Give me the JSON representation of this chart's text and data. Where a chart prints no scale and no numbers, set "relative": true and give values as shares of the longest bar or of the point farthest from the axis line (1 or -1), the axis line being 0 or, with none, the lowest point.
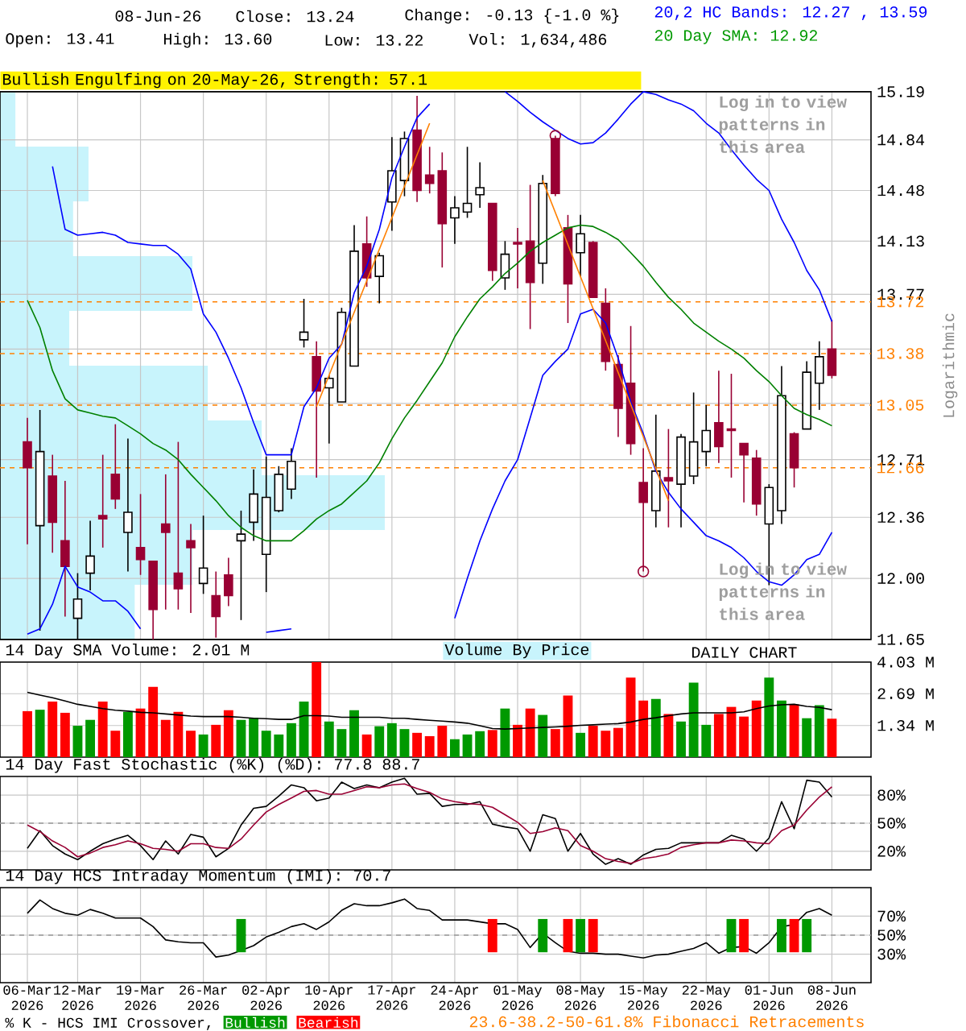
{
  "chart_data": [
    {
      "type": "candlestick",
      "ylabel": "Logarithmic",
      "log": "y",
      "grid": true,
      "tick_labels": "y",
      "categories": [
        null,
        null,
        null,
        null,
        null,
        null,
        null,
        null,
        null,
        null,
        null,
        null,
        null,
        null,
        null,
        null,
        null,
        null,
        null,
        null,
        null,
        null,
        null,
        null,
        null,
        null,
        null,
        null,
        null,
        null,
        null,
        null,
        null,
        null,
        null,
        null,
        null,
        null,
        null,
        null,
        null,
        null,
        null,
        null,
        null,
        null,
        null,
        null,
        null,
        null,
        null,
        null,
        null,
        null,
        null,
        null,
        null,
        null,
        null,
        null,
        null,
        null,
        null,
        null,
        null
      ],
      "ylim": [
        11.65,
        15.19
      ],
      "yticks": [
        11.65,
        {
          "value": 12,
          "label": "12.00"
        },
        12.36,
        12.71,
        {
          "value": 13.06,
          "label": null
        },
        {
          "value": 13.41,
          "label": null
        },
        13.77,
        14.13,
        14.48,
        14.84,
        15.19
      ],
      "ohlc": [
        [
          12.82,
          12.97,
          12.2,
          12.66
        ],
        [
          12.31,
          13.02,
          11.7,
          12.76
        ],
        [
          12.61,
          12.74,
          12.15,
          12.33
        ],
        [
          12.22,
          12.58,
          11.78,
          12.07
        ],
        [
          11.77,
          12.03,
          11.65,
          11.88
        ],
        [
          12.03,
          12.34,
          11.93,
          12.13
        ],
        [
          12.37,
          12.74,
          12.18,
          12.35
        ],
        [
          12.62,
          12.93,
          12.41,
          12.47
        ],
        [
          12.27,
          12.84,
          12.04,
          12.39
        ],
        [
          12.18,
          12.5,
          12.02,
          12.11
        ],
        [
          12.1,
          12.1,
          11.65,
          11.82
        ],
        [
          12.32,
          12.62,
          11.82,
          12.27
        ],
        [
          12.03,
          12.82,
          11.82,
          11.94
        ],
        [
          12.22,
          12.32,
          11.8,
          12.18
        ],
        [
          11.97,
          12.37,
          11.91,
          12.06
        ],
        [
          11.9,
          12.04,
          11.66,
          11.78
        ],
        [
          12.02,
          12.12,
          11.84,
          11.9
        ],
        [
          12.22,
          12.4,
          11.76,
          12.26
        ],
        [
          12.33,
          12.65,
          12.22,
          12.5
        ],
        [
          12.14,
          12.73,
          11.92,
          12.48
        ],
        [
          12.4,
          12.67,
          12.39,
          12.62
        ],
        [
          12.53,
          12.78,
          12.47,
          12.7
        ],
        [
          13.47,
          13.74,
          13.42,
          13.52
        ],
        [
          13.36,
          13.46,
          12.6,
          13.14
        ],
        [
          13.16,
          13.24,
          12.81,
          13.22
        ],
        [
          13.07,
          13.68,
          13.07,
          13.65
        ],
        [
          13.3,
          14.24,
          13.3,
          14.06
        ],
        [
          14.11,
          14.3,
          13.82,
          13.88
        ],
        [
          13.89,
          14.05,
          13.71,
          14.03
        ],
        [
          14.4,
          14.86,
          14.2,
          14.62
        ],
        [
          14.55,
          14.9,
          14.44,
          14.85
        ],
        [
          14.91,
          15.16,
          14.4,
          14.48
        ],
        [
          14.59,
          14.79,
          14.46,
          14.53
        ],
        [
          14.62,
          14.75,
          13.95,
          14.25
        ],
        [
          14.29,
          14.44,
          14.11,
          14.36
        ],
        [
          14.33,
          14.79,
          14.29,
          14.39
        ],
        [
          14.45,
          14.68,
          14.36,
          14.5
        ],
        [
          14.39,
          14.39,
          13.86,
          13.93
        ],
        [
          13.88,
          14.13,
          13.8,
          14.04
        ],
        [
          14.12,
          14.22,
          13.81,
          14.11
        ],
        [
          14.13,
          14.52,
          13.54,
          13.85
        ],
        [
          13.98,
          14.59,
          13.84,
          14.53
        ],
        [
          14.85,
          14.87,
          14.44,
          14.46
        ],
        [
          14.22,
          14.31,
          13.58,
          13.84
        ],
        [
          14.05,
          14.31,
          13.89,
          14.18
        ],
        [
          14.12,
          14.13,
          13.75,
          13.75
        ],
        [
          13.71,
          13.81,
          13.27,
          13.33
        ],
        [
          13.31,
          13.37,
          12.85,
          13.03
        ],
        [
          13.19,
          13.56,
          12.74,
          12.81
        ],
        [
          12.57,
          12.78,
          12.04,
          12.45
        ],
        [
          12.4,
          12.99,
          12.3,
          12.64
        ],
        [
          12.6,
          12.9,
          12.3,
          12.58
        ],
        [
          12.56,
          12.87,
          12.3,
          12.85
        ],
        [
          12.61,
          13.13,
          12.56,
          12.82
        ],
        [
          12.76,
          13.05,
          12.67,
          12.89
        ],
        [
          12.94,
          13.27,
          12.69,
          12.79
        ],
        [
          12.9,
          13.25,
          12.6,
          12.89
        ],
        [
          12.81,
          12.81,
          12.45,
          12.74
        ],
        [
          12.72,
          12.77,
          12.37,
          12.44
        ],
        [
          12.32,
          12.56,
          11.96,
          12.54
        ],
        [
          12.4,
          13.3,
          12.32,
          13.11
        ],
        [
          12.87,
          12.88,
          12.54,
          12.66
        ],
        [
          12.9,
          13.33,
          12.9,
          13.26
        ],
        [
          13.19,
          13.46,
          13.02,
          13.36
        ],
        [
          13.41,
          13.6,
          13.22,
          13.24
        ]
      ],
      "colors": [
        "#990033",
        "#ffffff",
        "#990033",
        "#990033",
        "#ffffff",
        "#ffffff",
        "#990033",
        "#990033",
        "#ffffff",
        "#990033",
        "#990033",
        "#990033",
        "#990033",
        "#990033",
        "#ffffff",
        "#990033",
        "#990033",
        "#ffffff",
        "#ffffff",
        "#ffffff",
        "#ffffff",
        "#ffffff",
        "#ffffff",
        "#990033",
        "#ffffff",
        "#ffffff",
        "#ffffff",
        "#990033",
        "#ffffff",
        "#ffffff",
        "#ffffff",
        "#990033",
        "#990033",
        "#990033",
        "#ffffff",
        "#ffffff",
        "#ffffff",
        "#990033",
        "#ffffff",
        "#990033",
        "#990033",
        "#ffffff",
        "#990033",
        "#990033",
        "#ffffff",
        "#990033",
        "#990033",
        "#990033",
        "#990033",
        "#990033",
        "#ffffff",
        "#990033",
        "#ffffff",
        "#ffffff",
        "#ffffff",
        "#990033",
        "#990033",
        "#990033",
        "#990033",
        "#ffffff",
        "#ffffff",
        "#990033",
        "#ffffff",
        "#ffffff",
        "#990033"
      ],
      "series": [
        {
          "type": "line",
          "color": "#0000ff",
          "values": [
            null,
            null,
            14.65,
            14.21,
            14.17,
            14.18,
            14.19,
            14.17,
            14.12,
            14.11,
            14.1,
            14.1,
            14.04,
            13.94,
            13.64,
            13.52,
            13.35,
            13.16,
            12.94,
            12.74,
            12.74,
            12.74,
            13.04,
            13.16,
            13.35,
            13.44,
            13.78,
            13.96,
            14.21,
            14.57,
            14.79,
            15.0,
            15.1,
            null,
            null,
            null,
            null,
            null,
            15.19,
            15.12,
            15.04,
            14.97,
            14.91,
            14.85,
            14.81,
            14.82,
            14.89,
            14.99,
            15.1,
            15.19,
            15.17,
            15.13,
            15.1,
            15.05,
            14.96,
            14.89,
            14.77,
            14.66,
            14.56,
            14.48,
            14.28,
            14.12,
            13.93,
            13.8,
            13.59
          ]
        },
        {
          "type": "line",
          "color": "#0000ff",
          "values": [
            11.68,
            11.71,
            11.85,
            12.07,
            11.95,
            11.92,
            11.87,
            11.87,
            11.81,
            11.71,
            null,
            null,
            null,
            null,
            null,
            null,
            null,
            null,
            null,
            null,
            null,
            null,
            null,
            null,
            null,
            null,
            null,
            null,
            null,
            null,
            null,
            null,
            null,
            null,
            11.77,
            12.0,
            12.22,
            12.41,
            12.58,
            12.71,
            12.97,
            13.24,
            13.33,
            13.41,
            13.64,
            13.67,
            13.58,
            13.35,
            13.07,
            12.87,
            12.64,
            12.51,
            12.41,
            12.33,
            12.25,
            12.22,
            12.18,
            12.12,
            12.04,
            11.98,
            11.96,
            12.02,
            12.11,
            12.14,
            12.27
          ]
        },
        {
          "type": "line",
          "color": "#008000",
          "values": [
            13.73,
            13.55,
            13.27,
            13.09,
            13.02,
            13.0,
            12.98,
            12.97,
            12.92,
            12.87,
            12.81,
            12.77,
            12.71,
            12.62,
            12.54,
            12.46,
            12.37,
            12.3,
            12.25,
            12.22,
            12.22,
            12.22,
            12.28,
            12.35,
            12.4,
            12.44,
            12.51,
            12.58,
            12.69,
            12.84,
            12.97,
            13.08,
            13.2,
            13.32,
            13.49,
            13.62,
            13.74,
            13.82,
            13.91,
            13.98,
            14.06,
            14.12,
            14.17,
            14.22,
            14.24,
            14.23,
            14.19,
            14.14,
            14.05,
            13.96,
            13.85,
            13.75,
            13.67,
            13.58,
            13.52,
            13.46,
            13.41,
            13.35,
            13.27,
            13.2,
            13.11,
            13.03,
            12.99,
            12.96,
            12.92
          ]
        },
        {
          "type": "line",
          "color": "#ff8000",
          "values": [
            null,
            null,
            null,
            null,
            null,
            null,
            null,
            null,
            null,
            null,
            null,
            null,
            null,
            null,
            null,
            null,
            null,
            null,
            null,
            null,
            null,
            null,
            null,
            13.04,
            null,
            null,
            null,
            null,
            null,
            null,
            null,
            null,
            14.96,
            null,
            null,
            null,
            null,
            null,
            null,
            null,
            null,
            null,
            null,
            null,
            null,
            null,
            null,
            null,
            null,
            null,
            null,
            null,
            null,
            null,
            null,
            null,
            null,
            null,
            null,
            null,
            null,
            null,
            null,
            null,
            null
          ]
        },
        {
          "type": "line",
          "color": "#ff8000",
          "values": [
            null,
            null,
            null,
            null,
            null,
            null,
            null,
            null,
            null,
            null,
            null,
            null,
            null,
            null,
            null,
            null,
            null,
            null,
            null,
            null,
            null,
            null,
            null,
            null,
            null,
            null,
            null,
            null,
            null,
            null,
            null,
            null,
            null,
            null,
            null,
            null,
            null,
            null,
            null,
            null,
            null,
            14.55,
            null,
            null,
            null,
            null,
            null,
            null,
            null,
            null,
            null,
            12.46,
            null,
            null,
            null,
            null,
            null,
            null,
            null,
            null,
            null,
            null,
            null,
            null,
            null
          ]
        },
        {
          "type": "line",
          "color": "#0000ff",
          "values": [
            null,
            null,
            null,
            null,
            null,
            null,
            null,
            null,
            null,
            null,
            null,
            null,
            null,
            null,
            null,
            null,
            null,
            null,
            null,
            11.69,
            11.7,
            11.71,
            null,
            null,
            null,
            null,
            null,
            null,
            null,
            null,
            null,
            null,
            null,
            null,
            null,
            null,
            null,
            null,
            null,
            null,
            null,
            null,
            null,
            null,
            null,
            null,
            null,
            null,
            null,
            null,
            null,
            null,
            null,
            null,
            null,
            null,
            null,
            null,
            null,
            null,
            null,
            null,
            null,
            null,
            null
          ]
        },
        {
          "type": "scatter",
          "color": "#990033",
          "marker": "circle",
          "values": [
            null,
            null,
            null,
            null,
            null,
            null,
            null,
            null,
            null,
            null,
            null,
            null,
            null,
            null,
            null,
            null,
            null,
            null,
            null,
            null,
            null,
            null,
            null,
            null,
            null,
            null,
            null,
            null,
            null,
            null,
            null,
            null,
            null,
            null,
            null,
            null,
            null,
            null,
            null,
            null,
            null,
            null,
            14.87,
            null,
            null,
            null,
            null,
            null,
            null,
            12.04,
            null,
            null,
            null,
            null,
            null,
            null,
            null,
            null,
            null,
            null,
            null,
            null,
            null,
            null,
            null
          ]
        }
      ],
      "ref_lines": [
        {
          "axis": "y",
          "value": 13.72,
          "label": "13.72",
          "color": "#ff8000",
          "line_style": "dashed"
        },
        {
          "axis": "y",
          "value": 13.38,
          "label": "13.38",
          "color": "#ff8000",
          "line_style": "dashed"
        },
        {
          "axis": "y",
          "value": 13.05,
          "label": "13.05",
          "color": "#ff8000",
          "line_style": "dashed"
        },
        {
          "axis": "y",
          "value": 12.66,
          "label": "12.66",
          "color": "#ff8000",
          "line_style": "dashed"
        }
      ],
      "annotations": [
        "08-Jun-26",
        "Close: 13.24",
        "Change: -0.13 {-1.0 %}",
        "Open: 13.41",
        "High: 13.60",
        "Low: 13.22",
        "Vol: 1,634,486",
        "20,2 HC Bands: 12.27 , 13.59",
        "20 Day SMA: 12.92",
        "Bullish Engulfing on 20-May-26, Strength: 57.1",
        "Log in to view patterns in this area",
        "Log in to view patterns in this area",
        "DAILY CHART",
        "23.6-38.2-50-61.8% Fibonacci Retracements",
        "Volume By Price"
      ]
    },
    {
      "type": "bar",
      "orientation": "horizontal",
      "relative": true,
      "color": "#c8f4fc",
      "categories": [
        null,
        null,
        null,
        null,
        null,
        null,
        null,
        null,
        null,
        null
      ],
      "values": [
        0.04,
        0.23,
        0.19,
        0.5,
        0.18,
        0.54,
        0.68,
        1,
        0.5,
        0.35
      ]
    },
    {
      "type": "bar",
      "title": "14 Day SMA Volume: 2.01 M",
      "tick_labels": "y",
      "grid": true,
      "categories": [
        null,
        null,
        null,
        null,
        null,
        null,
        null,
        null,
        null,
        null,
        null,
        null,
        null,
        null,
        null,
        null,
        null,
        null,
        null,
        null,
        null,
        null,
        null,
        null,
        null,
        null,
        null,
        null,
        null,
        null,
        null,
        null,
        null,
        null,
        null,
        null,
        null,
        null,
        null,
        null,
        null,
        null,
        null,
        null,
        null,
        null,
        null,
        null,
        null,
        null,
        null,
        null,
        null,
        null,
        null,
        null,
        null,
        null,
        null,
        null,
        null,
        null,
        null,
        null,
        null
      ],
      "ylim": [
        0,
        4.03
      ],
      "yticks": [
        {
          "value": 1.34,
          "label": "1.34 M"
        },
        {
          "value": 2.69,
          "label": "2.69 M"
        },
        {
          "value": 4.03,
          "label": "4.03 M"
        }
      ],
      "series": [
        {
          "type": "bar",
          "colors": [
            "#ff0000",
            "#009900",
            "#ff0000",
            "#ff0000",
            "#009900",
            "#009900",
            "#ff0000",
            "#ff0000",
            "#009900",
            "#ff0000",
            "#ff0000",
            "#ff0000",
            "#ff0000",
            "#ff0000",
            "#009900",
            "#ff0000",
            "#ff0000",
            "#009900",
            "#009900",
            "#009900",
            "#009900",
            "#009900",
            "#009900",
            "#ff0000",
            "#009900",
            "#009900",
            "#009900",
            "#ff0000",
            "#009900",
            "#009900",
            "#009900",
            "#ff0000",
            "#ff0000",
            "#ff0000",
            "#009900",
            "#009900",
            "#009900",
            "#ff0000",
            "#009900",
            "#ff0000",
            "#ff0000",
            "#009900",
            "#ff0000",
            "#ff0000",
            "#009900",
            "#ff0000",
            "#ff0000",
            "#ff0000",
            "#ff0000",
            "#ff0000",
            "#009900",
            "#ff0000",
            "#009900",
            "#009900",
            "#009900",
            "#ff0000",
            "#ff0000",
            "#ff0000",
            "#ff0000",
            "#009900",
            "#009900",
            "#ff0000",
            "#009900",
            "#009900",
            "#ff0000"
          ],
          "values": [
            1.95,
            2.01,
            2.36,
            1.88,
            1.33,
            1.58,
            2.36,
            1.12,
            1.92,
            2.06,
            2.98,
            1.58,
            1.92,
            1.12,
            0.96,
            1.37,
            1.99,
            1.58,
            1.67,
            1.12,
            0.96,
            1.44,
            2.36,
            4.03,
            1.51,
            1.19,
            1.99,
            0.96,
            1.31,
            1.44,
            1.19,
            1.03,
            0.89,
            1.33,
            0.76,
            0.96,
            1.1,
            1.15,
            2.06,
            1.37,
            2.06,
            1.79,
            1.19,
            2.61,
            1.03,
            1.33,
            1.12,
            1.24,
            3.37,
            2.4,
            2.47,
            1.83,
            1.51,
            3.16,
            1.37,
            1.83,
            2.13,
            1.72,
            2.4,
            3.37,
            2.4,
            2.24,
            1.65,
            2.2,
            1.63
          ]
        },
        {
          "type": "line",
          "color": "#000000",
          "values": [
            2.75,
            2.63,
            2.52,
            2.38,
            2.24,
            2.15,
            2.06,
            1.99,
            1.95,
            1.9,
            1.88,
            1.83,
            1.79,
            1.74,
            1.72,
            1.72,
            1.72,
            1.69,
            1.65,
            1.63,
            1.6,
            1.6,
            1.76,
            1.76,
            1.74,
            1.69,
            1.69,
            1.69,
            1.69,
            1.65,
            1.65,
            1.6,
            1.56,
            1.53,
            1.49,
            1.44,
            1.33,
            1.21,
            1.19,
            1.21,
            1.24,
            1.26,
            1.28,
            1.31,
            1.35,
            1.37,
            1.4,
            1.42,
            1.49,
            1.6,
            1.67,
            1.76,
            1.83,
            1.88,
            1.88,
            1.88,
            1.88,
            1.92,
            2.06,
            2.17,
            2.22,
            2.24,
            2.15,
            2.11,
            2.01
          ]
        }
      ]
    },
    {
      "type": "line",
      "title": "14 Day Fast Stochastic (%K) (%D): 77.8 88.7",
      "tick_labels": "y",
      "grid": true,
      "categories": [
        null,
        null,
        null,
        null,
        null,
        null,
        null,
        null,
        null,
        null,
        null,
        null,
        null,
        null,
        null,
        null,
        null,
        null,
        null,
        null,
        null,
        null,
        null,
        null,
        null,
        null,
        null,
        null,
        null,
        null,
        null,
        null,
        null,
        null,
        null,
        null,
        null,
        null,
        null,
        null,
        null,
        null,
        null,
        null,
        null,
        null,
        null,
        null,
        null,
        null,
        null,
        null,
        null,
        null,
        null,
        null,
        null,
        null,
        null,
        null,
        null,
        null,
        null,
        null,
        null
      ],
      "ylim": [
        0,
        100
      ],
      "yticks": [
        {
          "value": 20,
          "label": "20%"
        },
        {
          "value": 50,
          "label": "50%"
        },
        {
          "value": 80,
          "label": "80%"
        }
      ],
      "ref_lines": [
        {
          "axis": "y",
          "value": 50,
          "color": "#999999",
          "line_style": "dashed"
        }
      ],
      "series": [
        {
          "type": "line",
          "color": "#000000",
          "values": [
            23,
            42,
            26,
            17,
            11,
            20,
            28,
            33,
            37,
            26,
            11,
            31,
            17,
            38,
            35,
            14,
            23,
            48,
            66,
            68,
            79,
            91,
            88,
            74,
            77,
            94,
            87,
            91,
            88,
            94,
            98,
            81,
            82,
            68,
            70,
            70,
            73,
            49,
            46,
            44,
            20,
            59,
            55,
            20,
            39,
            17,
            6,
            12,
            6,
            16,
            22,
            23,
            29,
            29,
            29,
            29,
            37,
            33,
            20,
            34,
            73,
            44,
            96,
            94,
            78
          ]
        },
        {
          "type": "line",
          "color": "#990033",
          "values": [
            48,
            41,
            31,
            24,
            14,
            18,
            24,
            27,
            31,
            28,
            23,
            22,
            20,
            28,
            28,
            24,
            23,
            33,
            48,
            62,
            70,
            77,
            84,
            85,
            81,
            81,
            85,
            89,
            88,
            91,
            92,
            87,
            83,
            76,
            73,
            71,
            70,
            67,
            59,
            51,
            39,
            41,
            45,
            42,
            26,
            20,
            12,
            9,
            7,
            12,
            14,
            17,
            24,
            27,
            29,
            29,
            32,
            31,
            29,
            28,
            42,
            48,
            64,
            78,
            89
          ]
        }
      ]
    },
    {
      "type": "line",
      "title": "14 Day HCS Intraday Momentum (IMI): 70.7",
      "grid": true,
      "legend": "bottom",
      "legend_title": "% K - HCS IMI Crossover,",
      "categories": [
        "06-Mar 2026",
        null,
        null,
        null,
        "12-Mar 2026",
        null,
        null,
        null,
        null,
        "19-Mar 2026",
        null,
        null,
        null,
        null,
        "26-Mar 2026",
        null,
        null,
        null,
        null,
        "02-Apr 2026",
        null,
        null,
        null,
        null,
        "10-Apr 2026",
        null,
        null,
        null,
        null,
        "17-Apr 2026",
        null,
        null,
        null,
        null,
        "24-Apr 2026",
        null,
        null,
        null,
        null,
        "01-May 2026",
        null,
        null,
        null,
        null,
        "08-May 2026",
        null,
        null,
        null,
        null,
        "15-May 2026",
        null,
        null,
        null,
        null,
        "22-May 2026",
        null,
        null,
        null,
        null,
        "01-Jun 2026",
        null,
        null,
        null,
        null,
        "08-Jun 2026"
      ],
      "ylim": [
        0,
        100
      ],
      "yticks": [
        {
          "value": 30,
          "label": "30%"
        },
        {
          "value": 50,
          "label": "50%"
        },
        {
          "value": 70,
          "label": "70%"
        }
      ],
      "ref_lines": [
        {
          "axis": "y",
          "value": 50,
          "color": "#999999",
          "line_style": "dashed"
        }
      ],
      "series": [
        {
          "type": "line",
          "color": "#000000",
          "values": [
            73,
            87,
            78,
            73,
            71,
            77,
            73,
            68,
            68,
            68,
            59,
            45,
            43,
            42,
            42,
            27,
            29,
            34,
            39,
            48,
            53,
            59,
            62,
            56,
            64,
            76,
            83,
            81,
            81,
            84,
            88,
            78,
            76,
            66,
            66,
            66,
            64,
            62,
            62,
            56,
            37,
            52,
            42,
            33,
            31,
            31,
            30,
            30,
            28,
            26,
            29,
            30,
            33,
            36,
            42,
            31,
            37,
            38,
            31,
            42,
            59,
            61,
            74,
            78,
            71
          ]
        },
        {
          "type": "bar",
          "name": "Bullish",
          "color": "#009900",
          "values": [
            null,
            null,
            null,
            null,
            null,
            null,
            null,
            null,
            null,
            null,
            null,
            null,
            null,
            null,
            null,
            null,
            null,
            35,
            null,
            null,
            null,
            null,
            null,
            null,
            null,
            null,
            null,
            null,
            null,
            null,
            null,
            null,
            null,
            null,
            null,
            null,
            null,
            null,
            null,
            null,
            null,
            35,
            null,
            null,
            35,
            null,
            null,
            null,
            null,
            null,
            null,
            null,
            null,
            null,
            null,
            null,
            35,
            null,
            null,
            null,
            35,
            null,
            35,
            null,
            null
          ],
          "base": [
            null,
            null,
            null,
            null,
            null,
            null,
            null,
            null,
            null,
            null,
            null,
            null,
            null,
            null,
            null,
            null,
            null,
            32,
            null,
            null,
            null,
            null,
            null,
            null,
            null,
            null,
            null,
            null,
            null,
            null,
            null,
            null,
            null,
            null,
            null,
            null,
            null,
            null,
            null,
            null,
            null,
            32,
            null,
            null,
            32,
            null,
            null,
            null,
            null,
            null,
            null,
            null,
            null,
            null,
            null,
            null,
            32,
            null,
            null,
            null,
            32,
            null,
            32,
            null,
            null
          ]
        },
        {
          "type": "bar",
          "name": "Bearish",
          "color": "#ff0000",
          "values": [
            null,
            null,
            null,
            null,
            null,
            null,
            null,
            null,
            null,
            null,
            null,
            null,
            null,
            null,
            null,
            null,
            null,
            null,
            null,
            null,
            null,
            null,
            null,
            null,
            null,
            null,
            null,
            null,
            null,
            null,
            null,
            null,
            null,
            null,
            null,
            null,
            null,
            35,
            null,
            null,
            null,
            null,
            null,
            35,
            null,
            35,
            null,
            null,
            null,
            null,
            null,
            null,
            null,
            null,
            null,
            null,
            null,
            35,
            null,
            null,
            null,
            35,
            null,
            null,
            null
          ],
          "base": [
            null,
            null,
            null,
            null,
            null,
            null,
            null,
            null,
            null,
            null,
            null,
            null,
            null,
            null,
            null,
            null,
            null,
            null,
            null,
            null,
            null,
            null,
            null,
            null,
            null,
            null,
            null,
            null,
            null,
            null,
            null,
            null,
            null,
            null,
            null,
            null,
            null,
            32,
            null,
            null,
            null,
            null,
            null,
            32,
            null,
            32,
            null,
            null,
            null,
            null,
            null,
            null,
            null,
            null,
            null,
            null,
            null,
            32,
            null,
            null,
            null,
            32,
            null,
            null,
            null
          ]
        }
      ]
    }
  ]
}
